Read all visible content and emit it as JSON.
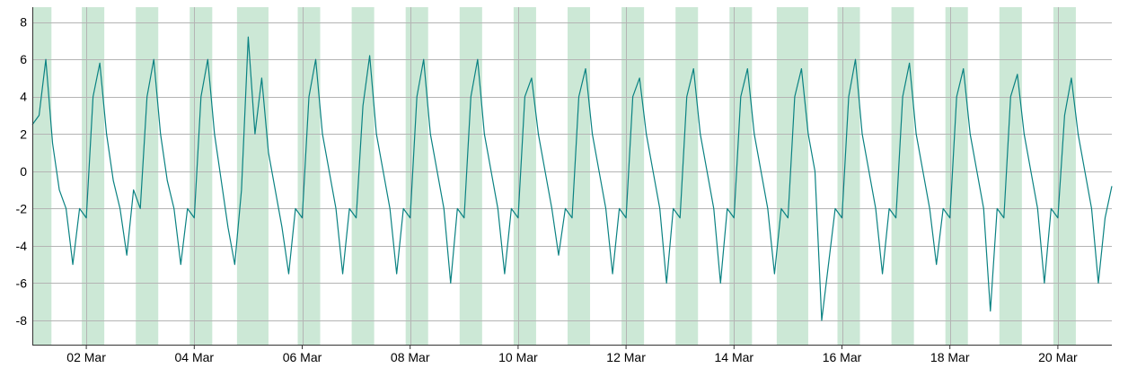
{
  "chart_data": {
    "type": "line",
    "x_start": "2024-03-01T00:00",
    "x_end": "2024-03-21T00:00",
    "ylim": [
      -9.3,
      8.8
    ],
    "y_ticks": [
      -8,
      -6,
      -4,
      -2,
      0,
      2,
      4,
      6,
      8
    ],
    "y_tick_labels": [
      "-8",
      "-6",
      "-4",
      "-2",
      "0",
      "2",
      "4",
      "6",
      "8"
    ],
    "x_ticks": [
      "2024-03-02",
      "2024-03-04",
      "2024-03-06",
      "2024-03-08",
      "2024-03-10",
      "2024-03-12",
      "2024-03-14",
      "2024-03-16",
      "2024-03-18",
      "2024-03-20"
    ],
    "x_tick_labels": [
      "02 Mar",
      "04 Mar",
      "06 Mar",
      "08 Mar",
      "10 Mar",
      "12 Mar",
      "14 Mar",
      "16 Mar",
      "18 Mar",
      "20 Mar"
    ],
    "grid": {
      "horizontal": true,
      "vertical": true
    },
    "line_color": "#0a8282",
    "band_color": "#cce8d6",
    "grid_color": "#b4b4b4",
    "bands": [
      [
        "2024-03-01T00:00",
        "2024-03-01T08:30"
      ],
      [
        "2024-03-01T22:00",
        "2024-03-02T08:00"
      ],
      [
        "2024-03-02T22:00",
        "2024-03-03T08:00"
      ],
      [
        "2024-03-03T22:00",
        "2024-03-04T08:00"
      ],
      [
        "2024-03-04T19:00",
        "2024-03-05T09:00"
      ],
      [
        "2024-03-05T22:00",
        "2024-03-06T08:00"
      ],
      [
        "2024-03-06T22:00",
        "2024-03-07T08:00"
      ],
      [
        "2024-03-07T22:00",
        "2024-03-08T08:00"
      ],
      [
        "2024-03-08T22:00",
        "2024-03-09T08:00"
      ],
      [
        "2024-03-09T22:00",
        "2024-03-10T08:00"
      ],
      [
        "2024-03-10T22:00",
        "2024-03-11T08:00"
      ],
      [
        "2024-03-11T22:00",
        "2024-03-12T08:00"
      ],
      [
        "2024-03-12T22:00",
        "2024-03-13T08:00"
      ],
      [
        "2024-03-13T22:00",
        "2024-03-14T08:00"
      ],
      [
        "2024-03-14T19:00",
        "2024-03-15T09:00"
      ],
      [
        "2024-03-15T22:00",
        "2024-03-16T08:00"
      ],
      [
        "2024-03-16T22:00",
        "2024-03-17T08:00"
      ],
      [
        "2024-03-17T22:00",
        "2024-03-18T08:00"
      ],
      [
        "2024-03-18T22:00",
        "2024-03-19T08:00"
      ],
      [
        "2024-03-19T22:00",
        "2024-03-20T08:00"
      ]
    ],
    "series": [
      {
        "x": [
          "2024-03-01T00:00",
          "2024-03-01T03:00",
          "2024-03-01T06:00",
          "2024-03-01T09:00",
          "2024-03-01T12:00",
          "2024-03-01T15:00",
          "2024-03-01T18:00",
          "2024-03-01T21:00",
          "2024-03-02T00:00",
          "2024-03-02T03:00",
          "2024-03-02T06:00",
          "2024-03-02T09:00",
          "2024-03-02T12:00",
          "2024-03-02T15:00",
          "2024-03-02T18:00",
          "2024-03-02T21:00",
          "2024-03-03T00:00",
          "2024-03-03T03:00",
          "2024-03-03T06:00",
          "2024-03-03T09:00",
          "2024-03-03T12:00",
          "2024-03-03T15:00",
          "2024-03-03T18:00",
          "2024-03-03T21:00",
          "2024-03-04T00:00",
          "2024-03-04T03:00",
          "2024-03-04T06:00",
          "2024-03-04T09:00",
          "2024-03-04T12:00",
          "2024-03-04T15:00",
          "2024-03-04T18:00",
          "2024-03-04T21:00",
          "2024-03-05T00:00",
          "2024-03-05T03:00",
          "2024-03-05T06:00",
          "2024-03-05T09:00",
          "2024-03-05T12:00",
          "2024-03-05T15:00",
          "2024-03-05T18:00",
          "2024-03-05T21:00",
          "2024-03-06T00:00",
          "2024-03-06T03:00",
          "2024-03-06T06:00",
          "2024-03-06T09:00",
          "2024-03-06T12:00",
          "2024-03-06T15:00",
          "2024-03-06T18:00",
          "2024-03-06T21:00",
          "2024-03-07T00:00",
          "2024-03-07T03:00",
          "2024-03-07T06:00",
          "2024-03-07T09:00",
          "2024-03-07T12:00",
          "2024-03-07T15:00",
          "2024-03-07T18:00",
          "2024-03-07T21:00",
          "2024-03-08T00:00",
          "2024-03-08T03:00",
          "2024-03-08T06:00",
          "2024-03-08T09:00",
          "2024-03-08T12:00",
          "2024-03-08T15:00",
          "2024-03-08T18:00",
          "2024-03-08T21:00",
          "2024-03-09T00:00",
          "2024-03-09T03:00",
          "2024-03-09T06:00",
          "2024-03-09T09:00",
          "2024-03-09T12:00",
          "2024-03-09T15:00",
          "2024-03-09T18:00",
          "2024-03-09T21:00",
          "2024-03-10T00:00",
          "2024-03-10T03:00",
          "2024-03-10T06:00",
          "2024-03-10T09:00",
          "2024-03-10T12:00",
          "2024-03-10T15:00",
          "2024-03-10T18:00",
          "2024-03-10T21:00",
          "2024-03-11T00:00",
          "2024-03-11T03:00",
          "2024-03-11T06:00",
          "2024-03-11T09:00",
          "2024-03-11T12:00",
          "2024-03-11T15:00",
          "2024-03-11T18:00",
          "2024-03-11T21:00",
          "2024-03-12T00:00",
          "2024-03-12T03:00",
          "2024-03-12T06:00",
          "2024-03-12T09:00",
          "2024-03-12T12:00",
          "2024-03-12T15:00",
          "2024-03-12T18:00",
          "2024-03-12T21:00",
          "2024-03-13T00:00",
          "2024-03-13T03:00",
          "2024-03-13T06:00",
          "2024-03-13T09:00",
          "2024-03-13T12:00",
          "2024-03-13T15:00",
          "2024-03-13T18:00",
          "2024-03-13T21:00",
          "2024-03-14T00:00",
          "2024-03-14T03:00",
          "2024-03-14T06:00",
          "2024-03-14T09:00",
          "2024-03-14T12:00",
          "2024-03-14T15:00",
          "2024-03-14T18:00",
          "2024-03-14T21:00",
          "2024-03-15T00:00",
          "2024-03-15T03:00",
          "2024-03-15T06:00",
          "2024-03-15T09:00",
          "2024-03-15T12:00",
          "2024-03-15T15:00",
          "2024-03-15T18:00",
          "2024-03-15T21:00",
          "2024-03-16T00:00",
          "2024-03-16T03:00",
          "2024-03-16T06:00",
          "2024-03-16T09:00",
          "2024-03-16T12:00",
          "2024-03-16T15:00",
          "2024-03-16T18:00",
          "2024-03-16T21:00",
          "2024-03-17T00:00",
          "2024-03-17T03:00",
          "2024-03-17T06:00",
          "2024-03-17T09:00",
          "2024-03-17T12:00",
          "2024-03-17T15:00",
          "2024-03-17T18:00",
          "2024-03-17T21:00",
          "2024-03-18T00:00",
          "2024-03-18T03:00",
          "2024-03-18T06:00",
          "2024-03-18T09:00",
          "2024-03-18T12:00",
          "2024-03-18T15:00",
          "2024-03-18T18:00",
          "2024-03-18T21:00",
          "2024-03-19T00:00",
          "2024-03-19T03:00",
          "2024-03-19T06:00",
          "2024-03-19T09:00",
          "2024-03-19T12:00",
          "2024-03-19T15:00",
          "2024-03-19T18:00",
          "2024-03-19T21:00",
          "2024-03-20T00:00",
          "2024-03-20T03:00",
          "2024-03-20T06:00",
          "2024-03-20T09:00",
          "2024-03-20T12:00",
          "2024-03-20T15:00",
          "2024-03-20T18:00",
          "2024-03-20T21:00",
          "2024-03-21T00:00"
        ],
        "y": [
          2.5,
          3.0,
          6.0,
          1.5,
          -1.0,
          -2.0,
          -5.0,
          -2.0,
          -2.5,
          4.0,
          5.8,
          2.0,
          -0.5,
          -2.0,
          -4.5,
          -1.0,
          -2.0,
          4.0,
          6.0,
          2.0,
          -0.5,
          -2.0,
          -5.0,
          -2.0,
          -2.5,
          4.0,
          6.0,
          2.0,
          -0.5,
          -3.0,
          -5.0,
          -1.0,
          7.2,
          2.0,
          5.0,
          1.0,
          -1.0,
          -3.0,
          -5.5,
          -2.0,
          -2.5,
          4.0,
          6.0,
          2.0,
          0.0,
          -2.0,
          -5.5,
          -2.0,
          -2.5,
          3.5,
          6.2,
          2.0,
          0.0,
          -2.0,
          -5.5,
          -2.0,
          -2.5,
          4.0,
          6.0,
          2.0,
          0.0,
          -2.0,
          -6.0,
          -2.0,
          -2.5,
          4.0,
          6.0,
          2.0,
          0.0,
          -2.0,
          -5.5,
          -2.0,
          -2.5,
          4.0,
          5.0,
          2.0,
          0.0,
          -2.0,
          -4.5,
          -2.0,
          -2.5,
          4.0,
          5.5,
          2.0,
          0.0,
          -2.0,
          -5.5,
          -2.0,
          -2.5,
          4.0,
          5.0,
          2.0,
          0.0,
          -2.0,
          -6.0,
          -2.0,
          -2.5,
          4.0,
          5.5,
          2.0,
          0.0,
          -2.0,
          -6.0,
          -2.0,
          -2.5,
          4.0,
          5.5,
          2.0,
          0.0,
          -2.0,
          -5.5,
          -2.0,
          -2.5,
          4.0,
          5.5,
          2.0,
          0.0,
          -8.0,
          -5.0,
          -2.0,
          -2.5,
          4.0,
          6.0,
          2.0,
          0.0,
          -2.0,
          -5.5,
          -2.0,
          -2.5,
          4.0,
          5.8,
          2.0,
          0.0,
          -2.0,
          -5.0,
          -2.0,
          -2.5,
          4.0,
          5.5,
          2.0,
          0.0,
          -2.0,
          -7.5,
          -2.0,
          -2.5,
          4.0,
          5.2,
          2.0,
          0.0,
          -2.0,
          -6.0,
          -2.0,
          -2.5,
          3.0,
          5.0,
          2.0,
          0.0,
          -2.0,
          -6.0,
          -2.5,
          -0.8
        ]
      }
    ]
  }
}
